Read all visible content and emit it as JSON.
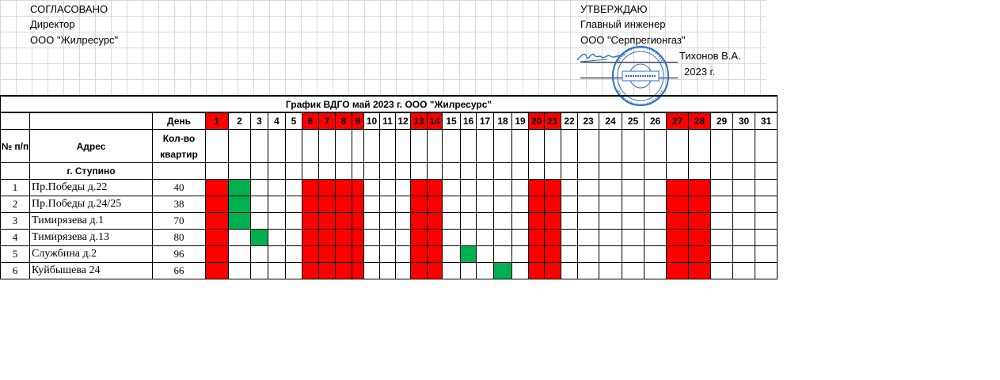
{
  "left_header": {
    "line1": "СОГЛАСОВАНО",
    "line2": "Директор",
    "line3": "ООО \"Жилресурс\""
  },
  "right_header": {
    "line1": "УТВЕРЖДАЮ",
    "line2": "Главный инженер",
    "line3": "ООО \"Серпрегионгаз\"",
    "signer": "Тихонов В.А.",
    "year": "2023 г."
  },
  "table": {
    "title": "График ВДГО май 2023 г.      ООО \"Жилресурс\"",
    "day_label": "День",
    "col_num": "№ п/п",
    "col_address": "Адрес",
    "col_count": "Кол-во квартир",
    "city": "г. Ступино",
    "days": [
      "1",
      "2",
      "3",
      "4",
      "5",
      "6",
      "7",
      "8",
      "9",
      "10",
      "11",
      "12",
      "13",
      "14",
      "15",
      "16",
      "17",
      "18",
      "19",
      "20",
      "21",
      "22",
      "23",
      "24",
      "25",
      "26",
      "27",
      "28",
      "29",
      "30",
      "31"
    ],
    "weekend_days": [
      1,
      6,
      7,
      8,
      9,
      13,
      14,
      20,
      21,
      27,
      28
    ],
    "rows": [
      {
        "num": "1",
        "address": "Пр.Победы д.22",
        "count": "40",
        "green_days": [
          2
        ]
      },
      {
        "num": "2",
        "address": "Пр.Победы д.24/25",
        "count": "38",
        "green_days": [
          2
        ]
      },
      {
        "num": "3",
        "address": "Тимирязева д.1",
        "count": "70",
        "green_days": [
          2
        ]
      },
      {
        "num": "4",
        "address": "Тимирязева д.13",
        "count": "80",
        "green_days": [
          3
        ]
      },
      {
        "num": "5",
        "address": "Службина д.2",
        "count": "96",
        "green_days": [
          16
        ]
      },
      {
        "num": "6",
        "address": "Куйбышева 24",
        "count": "66",
        "green_days": [
          18
        ]
      }
    ]
  },
  "colors": {
    "weekend": "#ff0000",
    "scheduled": "#00b050",
    "stamp": "#2b6cc4"
  }
}
